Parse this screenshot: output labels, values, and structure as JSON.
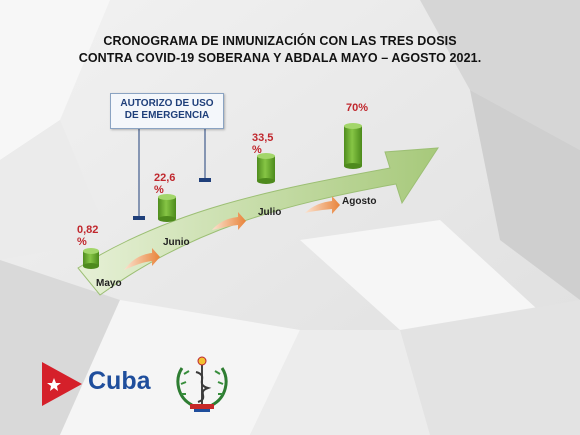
{
  "title": {
    "line1": "CRONOGRAMA DE INMUNIZACIÓN  CON LAS TRES DOSIS",
    "line2": "CONTRA COVID-19 SOBERANA  Y ABDALA  MAYO – AGOSTO 2021."
  },
  "callout": {
    "line1": "AUTORIZO DE USO",
    "line2": "DE EMERGENCIA"
  },
  "milestones": [
    {
      "month": "Mayo",
      "percent": "0,82 %",
      "value": 0.82
    },
    {
      "month": "Junio",
      "percent": "22,6 %",
      "value": 22.6
    },
    {
      "month": "Julio",
      "percent": "33,5 %",
      "value": 33.5
    },
    {
      "month": "Agosto",
      "percent": "70%",
      "value": 70
    }
  ],
  "logo": {
    "cuba_text": "Cuba"
  },
  "colors": {
    "arrow": "#bdd89a",
    "cylinder": "#6fae2b",
    "percent": "#c0272d",
    "orange": "#e8833a",
    "brand_blue": "#1f4e9c",
    "flag_red": "#d5202a"
  },
  "icons": [
    "cuba-flag-icon",
    "ministry-emblem-icon"
  ]
}
